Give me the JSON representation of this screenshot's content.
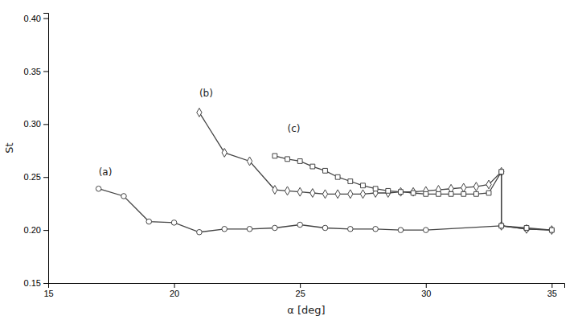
{
  "chart_data": {
    "type": "line",
    "xlabel": "α [deg]",
    "ylabel": "St",
    "xlim": [
      15,
      35.5
    ],
    "ylim": [
      0.15,
      0.405
    ],
    "xticks": [
      15,
      20,
      25,
      30,
      35
    ],
    "yticks": [
      0.15,
      {
        "value": 0.2,
        "label": "0.20"
      },
      0.25,
      {
        "value": 0.3,
        "label": "0.30"
      },
      0.35,
      {
        "value": 0.4,
        "label": "0.40"
      }
    ],
    "grid": false,
    "color": "#444444",
    "series": [
      {
        "marker": "circle",
        "x": [
          17,
          18,
          19,
          20,
          21,
          22,
          23,
          24,
          25,
          26,
          27,
          28,
          29,
          30,
          33,
          34,
          35
        ],
        "values": [
          0.239,
          0.232,
          0.208,
          0.207,
          0.198,
          0.201,
          0.201,
          0.202,
          0.205,
          0.202,
          0.201,
          0.201,
          0.2,
          0.2,
          0.204,
          0.201,
          0.2
        ]
      },
      {
        "marker": "diamond",
        "x": [
          21,
          22,
          23,
          24,
          24.5,
          25,
          25.5,
          26,
          26.5,
          27,
          27.5,
          28,
          28.5,
          29,
          29.5,
          30,
          30.5,
          31,
          31.5,
          32,
          32.5,
          33,
          33,
          34,
          35
        ],
        "values": [
          0.311,
          0.273,
          0.265,
          0.238,
          0.237,
          0.236,
          0.235,
          0.234,
          0.234,
          0.234,
          0.234,
          0.235,
          0.235,
          0.236,
          0.236,
          0.237,
          0.238,
          0.239,
          0.24,
          0.241,
          0.243,
          0.255,
          0.204,
          0.201,
          0.2
        ]
      },
      {
        "marker": "square",
        "x": [
          24,
          24.5,
          25,
          25.5,
          26,
          26.5,
          27,
          27.5,
          28,
          28.5,
          29,
          29.5,
          30,
          30.5,
          31,
          31.5,
          32,
          32.5,
          33,
          33,
          34,
          35
        ],
        "values": [
          0.27,
          0.267,
          0.265,
          0.26,
          0.256,
          0.25,
          0.246,
          0.242,
          0.239,
          0.237,
          0.236,
          0.235,
          0.234,
          0.234,
          0.234,
          0.234,
          0.234,
          0.235,
          0.255,
          0.204,
          0.202,
          0.2
        ]
      }
    ],
    "annotations": [
      {
        "text": "(a)",
        "x": 17.0,
        "y": 0.252
      },
      {
        "text": "(b)",
        "x": 21.0,
        "y": 0.326
      },
      {
        "text": "(c)",
        "x": 24.5,
        "y": 0.293
      }
    ]
  }
}
